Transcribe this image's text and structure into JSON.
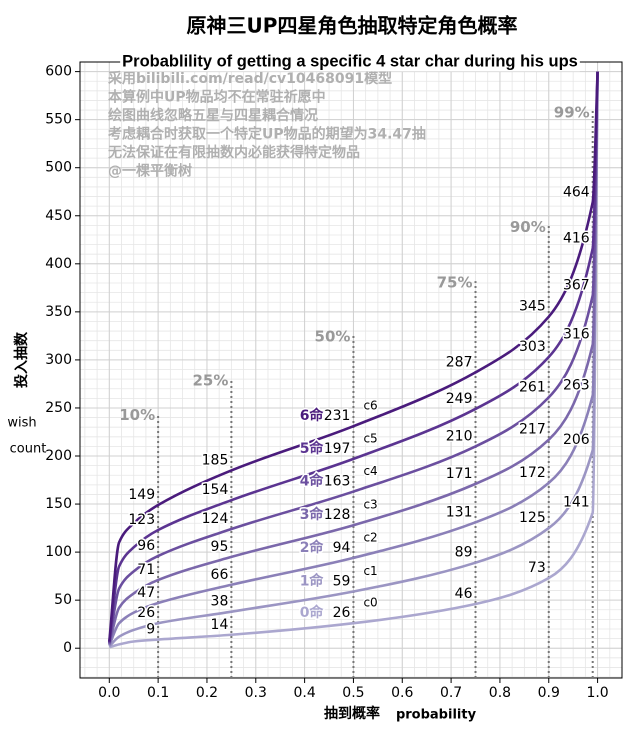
{
  "chart_data": {
    "type": "line",
    "title": "原神三UP四星角色抽取特定角色概率",
    "subtitle": "Probablility of getting a specific 4 star char during his ups",
    "notes": [
      "采用bilibili.com/read/cv10468091模型",
      "本算例中UP物品均不在常驻祈愿中",
      "绘图曲线忽略五星与四星耦合情况",
      "考虑耦合时获取一个特定UP物品的期望为34.47抽",
      "无法保证在有限抽数内必能获得特定物品",
      "@一棵平衡树"
    ],
    "x_label": "抽到概率",
    "x_label_en": "probability",
    "y_label": "投入抽数",
    "y_label_en": [
      "wish",
      "count"
    ],
    "x": [
      0,
      0.02,
      0.05,
      0.1,
      0.25,
      0.5,
      0.75,
      0.9,
      0.99,
      1.0
    ],
    "series": [
      {
        "name": "0命",
        "tag": "c0",
        "color": "#aba7cf",
        "values": [
          1,
          4,
          7,
          9,
          14,
          26,
          46,
          73,
          141,
          600
        ]
      },
      {
        "name": "1命",
        "tag": "c1",
        "color": "#9b95c3",
        "values": [
          2,
          12,
          19,
          26,
          38,
          59,
          89,
          125,
          206,
          600
        ]
      },
      {
        "name": "2命",
        "tag": "c2",
        "color": "#8b80b8",
        "values": [
          3,
          26,
          37,
          47,
          66,
          94,
          131,
          172,
          263,
          600
        ]
      },
      {
        "name": "3命",
        "tag": "c3",
        "color": "#7b68ab",
        "values": [
          4,
          42,
          57,
          71,
          95,
          128,
          171,
          217,
          316,
          600
        ]
      },
      {
        "name": "4命",
        "tag": "c4",
        "color": "#6b4f9f",
        "values": [
          5,
          62,
          80,
          96,
          124,
          163,
          210,
          261,
          367,
          600
        ]
      },
      {
        "name": "5命",
        "tag": "c5",
        "color": "#5b3491",
        "values": [
          6,
          85,
          105,
          123,
          154,
          197,
          249,
          303,
          416,
          600
        ]
      },
      {
        "name": "6命",
        "tag": "c6",
        "color": "#4a1b7c",
        "values": [
          7,
          110,
          130,
          149,
          185,
          231,
          287,
          345,
          464,
          600
        ]
      }
    ],
    "percentiles": [
      {
        "value": 0.1,
        "label": "10%"
      },
      {
        "value": 0.25,
        "label": "25%"
      },
      {
        "value": 0.5,
        "label": "50%"
      },
      {
        "value": 0.75,
        "label": "75%"
      },
      {
        "value": 0.9,
        "label": "90%"
      },
      {
        "value": 0.99,
        "label": "99%"
      }
    ],
    "xlim": [
      -0.06,
      1.05
    ],
    "ylim": [
      -31,
      610
    ],
    "xticks": [
      {
        "value": 0,
        "label": "0.0"
      },
      0.1,
      0.2,
      0.3,
      0.4,
      0.5,
      0.6,
      0.7,
      0.8,
      0.9,
      {
        "value": 1,
        "label": "1.0"
      }
    ],
    "yticks": [
      0,
      50,
      100,
      150,
      200,
      250,
      300,
      350,
      400,
      450,
      500,
      550,
      600
    ],
    "grid": true,
    "minor_grid": true
  }
}
